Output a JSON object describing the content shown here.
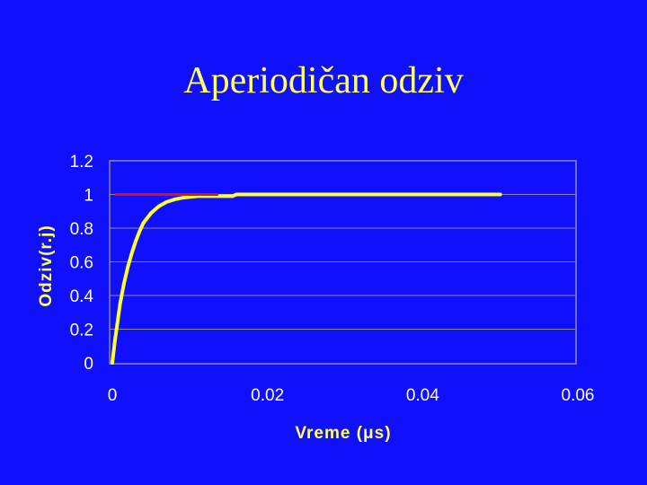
{
  "slide": {
    "title": "Aperiodičan odziv"
  },
  "colors": {
    "background": "#1010FF",
    "title": "#FFFF66",
    "response": "#FFFF33",
    "reference": "#DD1111",
    "grid": "#8A8A8A"
  },
  "chart_data": {
    "type": "line",
    "title": "",
    "xlabel": "Vreme (μs)",
    "ylabel": "Odziv(r.j)",
    "xlim": [
      0,
      0.06
    ],
    "ylim": [
      0,
      1.2
    ],
    "x_ticks": [
      "0",
      "0.02",
      "0.04",
      "0.06"
    ],
    "y_ticks": [
      "0",
      "0.2",
      "0.4",
      "0.6",
      "0.8",
      "1",
      "1.2"
    ],
    "grid": "horizontal",
    "series": [
      {
        "color": "#FFFF33",
        "x": [
          0,
          0.0003,
          0.0006,
          0.001,
          0.0015,
          0.002,
          0.0025,
          0.003,
          0.0035,
          0.004,
          0.005,
          0.006,
          0.007,
          0.008,
          0.009,
          0.01,
          0.011,
          0.013,
          0.0155,
          0.016,
          0.02,
          0.03,
          0.04,
          0.05
        ],
        "y": [
          0,
          0.12,
          0.22,
          0.35,
          0.47,
          0.57,
          0.65,
          0.72,
          0.78,
          0.83,
          0.89,
          0.93,
          0.955,
          0.97,
          0.98,
          0.985,
          0.99,
          0.99,
          0.99,
          1.0,
          1.0,
          1.0,
          1.0,
          1.0
        ]
      },
      {
        "color": "#DD1111",
        "x": [
          0.0005,
          0.0135
        ],
        "y": [
          1.0,
          1.0
        ]
      }
    ]
  }
}
